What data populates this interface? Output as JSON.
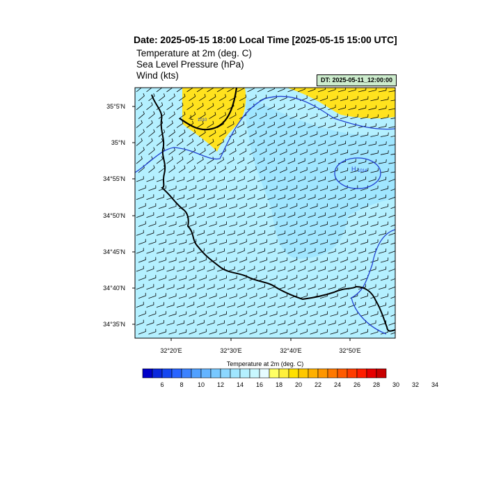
{
  "title": "Date: 2025-05-15  18:00 Local Time [2025-05-15  15:00 UTC]",
  "fields": [
    "Temperature at 2m   (deg. C)",
    "Sea Level Pressure   (hPa)",
    "Wind   (kts)"
  ],
  "dt_label": "DT: 2025-05-11_12:00:00",
  "lat_ticks": [
    "35°5'N",
    "35°N",
    "34°55'N",
    "34°50'N",
    "34°45'N",
    "34°40'N",
    "34°35'N"
  ],
  "lon_ticks": [
    "32°20'E",
    "32°30'E",
    "32°40'E",
    "32°50'E"
  ],
  "colorbar": {
    "title": "Temperature at 2m  (deg. C)",
    "labels": [
      "6",
      "8",
      "10",
      "12",
      "14",
      "16",
      "18",
      "20",
      "22",
      "24",
      "26",
      "28",
      "30",
      "32",
      "34"
    ],
    "colors": [
      "#0000c8",
      "#0a28dc",
      "#1446f0",
      "#2864ff",
      "#3c82ff",
      "#50a0ff",
      "#64b4ff",
      "#78c8ff",
      "#8cd7ff",
      "#a0e6ff",
      "#b4f0ff",
      "#c8f8ff",
      "#e6fcff",
      "#ffff64",
      "#fff03c",
      "#ffe000",
      "#ffc800",
      "#ffb000",
      "#ff9600",
      "#ff7800",
      "#ff5a00",
      "#ff3c00",
      "#ff1e00",
      "#e60000",
      "#c80000"
    ]
  },
  "contours": [
    {
      "label": "1010",
      "kind": "sea-level-pressure-label"
    },
    {
      "label": "1014",
      "kind": "high-pressure-label"
    }
  ],
  "colors": {
    "land_coast": "#000000",
    "pressure_isobar": "#2040d0",
    "field_light": "#b4f0ff",
    "field_cool": "#a0e6ff",
    "field_warm": "#ffe21e"
  }
}
